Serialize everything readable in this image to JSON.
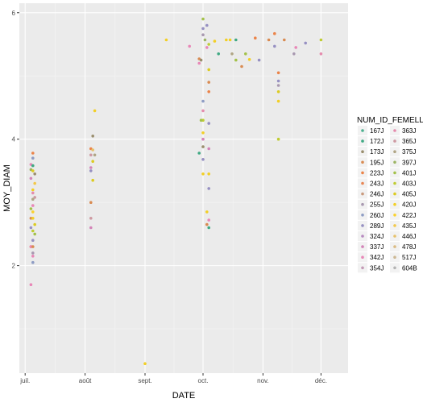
{
  "chart_data": {
    "type": "scatter",
    "title": "",
    "xlabel": "DATE",
    "ylabel": "MOY_DIAM",
    "x_axis_type": "date",
    "x_tick_labels": [
      "juil.",
      "août",
      "sept.",
      "oct.",
      "nov.",
      "déc."
    ],
    "x_ticks": [
      "2021-07-01",
      "2021-08-01",
      "2021-09-01",
      "2021-10-01",
      "2021-11-01",
      "2021-12-01"
    ],
    "xlim": [
      "2021-06-28",
      "2021-12-15"
    ],
    "ylim": [
      0.3,
      6.15
    ],
    "y_ticks": [
      2,
      4,
      6
    ],
    "y_tick_labels": [
      "2",
      "4",
      "6"
    ],
    "grid": true,
    "legend": {
      "title": "NUM_ID_FEMELLES",
      "placement": "right",
      "columns": 2,
      "entries": [
        {
          "label": "167J",
          "color": "#4CB08F"
        },
        {
          "label": "172J",
          "color": "#3FA983"
        },
        {
          "label": "173J",
          "color": "#9A8E6E"
        },
        {
          "label": "195J",
          "color": "#D98B52"
        },
        {
          "label": "223J",
          "color": "#EB8348"
        },
        {
          "label": "243J",
          "color": "#E88553"
        },
        {
          "label": "246J",
          "color": "#C99A7E"
        },
        {
          "label": "255J",
          "color": "#A898B0"
        },
        {
          "label": "260J",
          "color": "#8E9CC4"
        },
        {
          "label": "289J",
          "color": "#9690C2"
        },
        {
          "label": "324J",
          "color": "#B78AC0"
        },
        {
          "label": "337J",
          "color": "#D384B8"
        },
        {
          "label": "342J",
          "color": "#E887B7"
        },
        {
          "label": "354J",
          "color": "#C49BB6"
        },
        {
          "label": "363J",
          "color": "#E58BAD"
        },
        {
          "label": "365J",
          "color": "#CE99A1"
        },
        {
          "label": "375J",
          "color": "#B0A585"
        },
        {
          "label": "397J",
          "color": "#9CB463"
        },
        {
          "label": "401J",
          "color": "#A3C14A"
        },
        {
          "label": "403J",
          "color": "#BFCC32"
        },
        {
          "label": "405J",
          "color": "#DCCB22"
        },
        {
          "label": "420J",
          "color": "#F2CF26"
        },
        {
          "label": "422J",
          "color": "#FAD12C"
        },
        {
          "label": "435J",
          "color": "#F2C84A"
        },
        {
          "label": "446J",
          "color": "#E7C16A"
        },
        {
          "label": "478J",
          "color": "#DBBB83"
        },
        {
          "label": "517J",
          "color": "#CCB793"
        },
        {
          "label": "604B",
          "color": "#B3B3B3"
        }
      ]
    },
    "points": [
      {
        "x": "2021-07-04",
        "y": 3.6,
        "color": "#E887B7"
      },
      {
        "x": "2021-07-04",
        "y": 3.52,
        "color": "#9CB463"
      },
      {
        "x": "2021-07-04",
        "y": 3.38,
        "color": "#D384B8"
      },
      {
        "x": "2021-07-05",
        "y": 3.2,
        "color": "#F2CF26"
      },
      {
        "x": "2021-07-04",
        "y": 2.9,
        "color": "#A3C14A"
      },
      {
        "x": "2021-07-04",
        "y": 2.75,
        "color": "#D98B52"
      },
      {
        "x": "2021-07-04",
        "y": 2.6,
        "color": "#9690C2"
      },
      {
        "x": "2021-07-04",
        "y": 2.3,
        "color": "#EB8348"
      },
      {
        "x": "2021-07-04",
        "y": 1.7,
        "color": "#E887B7"
      },
      {
        "x": "2021-07-05",
        "y": 3.78,
        "color": "#EB8348"
      },
      {
        "x": "2021-07-05",
        "y": 3.7,
        "color": "#8E9CC4"
      },
      {
        "x": "2021-07-05",
        "y": 3.58,
        "color": "#3FA983"
      },
      {
        "x": "2021-07-05",
        "y": 3.5,
        "color": "#DCCB22"
      },
      {
        "x": "2021-07-06",
        "y": 3.45,
        "color": "#9A8E6E"
      },
      {
        "x": "2021-07-06",
        "y": 3.3,
        "color": "#F2C84A"
      },
      {
        "x": "2021-07-05",
        "y": 3.15,
        "color": "#E58BAD"
      },
      {
        "x": "2021-07-06",
        "y": 3.08,
        "color": "#CE99A1"
      },
      {
        "x": "2021-07-05",
        "y": 3.05,
        "color": "#B0A585"
      },
      {
        "x": "2021-07-05",
        "y": 2.95,
        "color": "#E887B7"
      },
      {
        "x": "2021-07-05",
        "y": 2.85,
        "color": "#FAD12C"
      },
      {
        "x": "2021-07-05",
        "y": 2.75,
        "color": "#F2CF26"
      },
      {
        "x": "2021-07-06",
        "y": 2.65,
        "color": "#DCCB22"
      },
      {
        "x": "2021-07-05",
        "y": 2.55,
        "color": "#BFCC32"
      },
      {
        "x": "2021-07-06",
        "y": 2.5,
        "color": "#A3C14A"
      },
      {
        "x": "2021-07-05",
        "y": 2.4,
        "color": "#9690C2"
      },
      {
        "x": "2021-07-04",
        "y": 2.3,
        "color": "#E887B7"
      },
      {
        "x": "2021-07-05",
        "y": 2.3,
        "color": "#D98B52"
      },
      {
        "x": "2021-07-05",
        "y": 2.2,
        "color": "#A898B0"
      },
      {
        "x": "2021-07-05",
        "y": 2.15,
        "color": "#E887B7"
      },
      {
        "x": "2021-07-05",
        "y": 2.05,
        "color": "#8E9CC4"
      },
      {
        "x": "2021-08-06",
        "y": 4.45,
        "color": "#F2CF26"
      },
      {
        "x": "2021-08-05",
        "y": 4.05,
        "color": "#9A8E6E"
      },
      {
        "x": "2021-08-04",
        "y": 3.85,
        "color": "#EB8348"
      },
      {
        "x": "2021-08-05",
        "y": 3.83,
        "color": "#E7C16A"
      },
      {
        "x": "2021-08-06",
        "y": 3.75,
        "color": "#B0A585"
      },
      {
        "x": "2021-08-04",
        "y": 3.75,
        "color": "#CE99A1"
      },
      {
        "x": "2021-08-05",
        "y": 3.65,
        "color": "#DCCB22"
      },
      {
        "x": "2021-08-04",
        "y": 3.55,
        "color": "#D384B8"
      },
      {
        "x": "2021-08-04",
        "y": 3.5,
        "color": "#9690C2"
      },
      {
        "x": "2021-08-05",
        "y": 3.35,
        "color": "#DCCB22"
      },
      {
        "x": "2021-08-04",
        "y": 3.0,
        "color": "#D98B52"
      },
      {
        "x": "2021-08-04",
        "y": 2.75,
        "color": "#CE99A1"
      },
      {
        "x": "2021-08-04",
        "y": 2.6,
        "color": "#D384B8"
      },
      {
        "x": "2021-09-01",
        "y": 0.45,
        "color": "#F2CF26"
      },
      {
        "x": "2021-09-12",
        "y": 5.57,
        "color": "#F2CF26"
      },
      {
        "x": "2021-09-24",
        "y": 5.47,
        "color": "#E887B7"
      },
      {
        "x": "2021-09-29",
        "y": 5.27,
        "color": "#D98B52"
      },
      {
        "x": "2021-09-29",
        "y": 5.2,
        "color": "#E887B7"
      },
      {
        "x": "2021-09-30",
        "y": 5.25,
        "color": "#9A8E6E"
      },
      {
        "x": "2021-10-01",
        "y": 5.9,
        "color": "#A3C14A"
      },
      {
        "x": "2021-10-01",
        "y": 5.75,
        "color": "#9690C2"
      },
      {
        "x": "2021-10-01",
        "y": 5.65,
        "color": "#A898B0"
      },
      {
        "x": "2021-10-02",
        "y": 5.57,
        "color": "#9CB463"
      },
      {
        "x": "2021-10-03",
        "y": 5.8,
        "color": "#9690C2"
      },
      {
        "x": "2021-10-03",
        "y": 5.45,
        "color": "#E887B7"
      },
      {
        "x": "2021-10-04",
        "y": 5.5,
        "color": "#BFCC32"
      },
      {
        "x": "2021-10-04",
        "y": 5.1,
        "color": "#DCCB22"
      },
      {
        "x": "2021-10-04",
        "y": 4.9,
        "color": "#D98B52"
      },
      {
        "x": "2021-10-04",
        "y": 4.75,
        "color": "#EB8348"
      },
      {
        "x": "2021-10-01",
        "y": 4.6,
        "color": "#8E9CC4"
      },
      {
        "x": "2021-10-01",
        "y": 4.45,
        "color": "#E58BAD"
      },
      {
        "x": "2021-10-01",
        "y": 4.3,
        "color": "#BFCC32"
      },
      {
        "x": "2021-09-30",
        "y": 4.3,
        "color": "#A3C14A"
      },
      {
        "x": "2021-10-04",
        "y": 4.25,
        "color": "#9690C2"
      },
      {
        "x": "2021-10-01",
        "y": 4.1,
        "color": "#F2CF26"
      },
      {
        "x": "2021-10-01",
        "y": 4.0,
        "color": "#D384B8"
      },
      {
        "x": "2021-10-01",
        "y": 3.88,
        "color": "#9A8E6E"
      },
      {
        "x": "2021-10-04",
        "y": 3.85,
        "color": "#D384B8"
      },
      {
        "x": "2021-09-29",
        "y": 3.78,
        "color": "#3FA983"
      },
      {
        "x": "2021-10-01",
        "y": 3.68,
        "color": "#9690C2"
      },
      {
        "x": "2021-10-01",
        "y": 3.45,
        "color": "#F2CF26"
      },
      {
        "x": "2021-10-04",
        "y": 3.45,
        "color": "#F2CF26"
      },
      {
        "x": "2021-10-04",
        "y": 3.22,
        "color": "#9690C2"
      },
      {
        "x": "2021-10-03",
        "y": 2.85,
        "color": "#F2CF26"
      },
      {
        "x": "2021-10-04",
        "y": 2.72,
        "color": "#E887B7"
      },
      {
        "x": "2021-10-03",
        "y": 2.65,
        "color": "#D98B52"
      },
      {
        "x": "2021-10-04",
        "y": 2.6,
        "color": "#3FA983"
      },
      {
        "x": "2021-10-07",
        "y": 5.55,
        "color": "#F2CF26"
      },
      {
        "x": "2021-10-09",
        "y": 5.35,
        "color": "#3FA983"
      },
      {
        "x": "2021-10-13",
        "y": 5.57,
        "color": "#F2CF26"
      },
      {
        "x": "2021-10-15",
        "y": 5.57,
        "color": "#F2CF26"
      },
      {
        "x": "2021-10-16",
        "y": 5.35,
        "color": "#B0A585"
      },
      {
        "x": "2021-10-18",
        "y": 5.25,
        "color": "#A3C14A"
      },
      {
        "x": "2021-10-18",
        "y": 5.57,
        "color": "#3FA983"
      },
      {
        "x": "2021-10-21",
        "y": 5.15,
        "color": "#D98B52"
      },
      {
        "x": "2021-10-23",
        "y": 5.35,
        "color": "#A3C14A"
      },
      {
        "x": "2021-10-25",
        "y": 5.26,
        "color": "#F2CF26"
      },
      {
        "x": "2021-10-28",
        "y": 5.6,
        "color": "#EB8348"
      },
      {
        "x": "2021-10-30",
        "y": 5.25,
        "color": "#9690C2"
      },
      {
        "x": "2021-11-04",
        "y": 5.57,
        "color": "#D98B52"
      },
      {
        "x": "2021-11-07",
        "y": 5.67,
        "color": "#EB8348"
      },
      {
        "x": "2021-11-07",
        "y": 5.47,
        "color": "#9690C2"
      },
      {
        "x": "2021-11-09",
        "y": 5.05,
        "color": "#EB8348"
      },
      {
        "x": "2021-11-09",
        "y": 4.92,
        "color": "#9690C2"
      },
      {
        "x": "2021-11-09",
        "y": 4.85,
        "color": "#A898B0"
      },
      {
        "x": "2021-11-09",
        "y": 4.75,
        "color": "#DCCB22"
      },
      {
        "x": "2021-11-09",
        "y": 4.6,
        "color": "#F2CF26"
      },
      {
        "x": "2021-11-09",
        "y": 4.0,
        "color": "#BFCC32"
      },
      {
        "x": "2021-11-12",
        "y": 5.57,
        "color": "#D98B52"
      },
      {
        "x": "2021-11-17",
        "y": 5.35,
        "color": "#A898B0"
      },
      {
        "x": "2021-11-18",
        "y": 5.45,
        "color": "#E887B7"
      },
      {
        "x": "2021-11-23",
        "y": 5.52,
        "color": "#9690C2"
      },
      {
        "x": "2021-12-01",
        "y": 5.57,
        "color": "#BFCC32"
      },
      {
        "x": "2021-12-01",
        "y": 5.35,
        "color": "#E58BAD"
      }
    ]
  }
}
